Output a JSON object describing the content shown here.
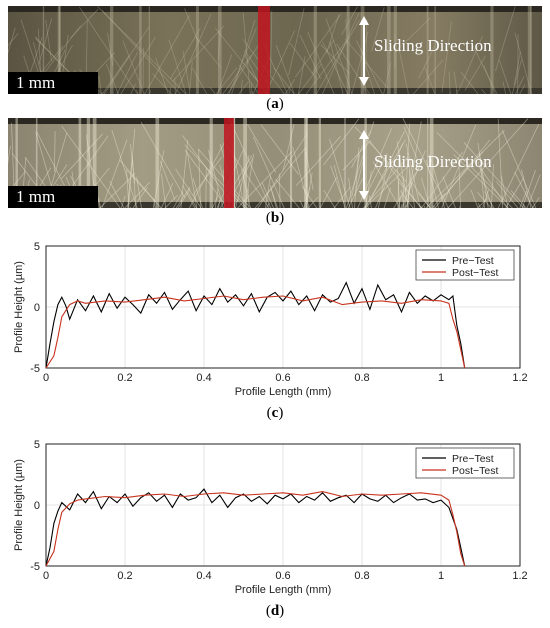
{
  "panel_a": {
    "scale_label": "1 mm",
    "direction_label": "Sliding Direction",
    "caption_open": "(",
    "caption_letter": "a",
    "caption_close": ")"
  },
  "panel_b": {
    "scale_label": "1 mm",
    "direction_label": "Sliding Direction",
    "caption_open": "(",
    "caption_letter": "b",
    "caption_close": ")"
  },
  "panel_c": {
    "caption_open": "(",
    "caption_letter": "c",
    "caption_close": ")"
  },
  "panel_d": {
    "caption_open": "(",
    "caption_letter": "d",
    "caption_close": ")"
  },
  "colors": {
    "pre_test": "#000000",
    "post_test": "#c8321e",
    "marker_line": "#c0141e"
  },
  "chart_data": [
    {
      "type": "line",
      "xlabel": "Profile Length (mm)",
      "ylabel": "Profile Height (µm)",
      "xlim": [
        0,
        1.2
      ],
      "ylim": [
        -5,
        5
      ],
      "x_ticks": [
        0,
        0.2,
        0.4,
        0.6,
        0.8,
        1,
        1.2
      ],
      "x_tick_labels": [
        "0",
        "0.2",
        "0.4",
        "0.6",
        "0.8",
        "1",
        "1.2"
      ],
      "y_ticks": [
        -5,
        0,
        5
      ],
      "y_tick_labels": [
        "-5",
        "0",
        "5"
      ],
      "grid": true,
      "legend_position": "top-right",
      "series": [
        {
          "name": "Pre−Test",
          "x": [
            0,
            0.01,
            0.02,
            0.03,
            0.04,
            0.05,
            0.06,
            0.08,
            0.1,
            0.12,
            0.14,
            0.16,
            0.18,
            0.2,
            0.22,
            0.24,
            0.26,
            0.28,
            0.3,
            0.32,
            0.34,
            0.36,
            0.38,
            0.4,
            0.42,
            0.44,
            0.46,
            0.48,
            0.5,
            0.52,
            0.54,
            0.56,
            0.58,
            0.6,
            0.62,
            0.64,
            0.66,
            0.68,
            0.7,
            0.72,
            0.74,
            0.76,
            0.78,
            0.8,
            0.82,
            0.84,
            0.86,
            0.88,
            0.9,
            0.92,
            0.94,
            0.96,
            0.98,
            1.0,
            1.02,
            1.03,
            1.04,
            1.05,
            1.06
          ],
          "y": [
            -5,
            -3,
            -1.2,
            0.2,
            0.8,
            0.1,
            -1.0,
            0.6,
            -0.3,
            0.9,
            -0.4,
            1.1,
            -0.1,
            0.8,
            0.2,
            -0.5,
            1.0,
            0.3,
            1.2,
            -0.2,
            0.6,
            1.3,
            -0.3,
            0.9,
            0.2,
            1.5,
            0.4,
            1.0,
            0.1,
            1.1,
            -0.4,
            0.8,
            1.2,
            0.5,
            1.3,
            0.2,
            0.9,
            -0.3,
            1.0,
            0.4,
            0.7,
            2.0,
            0.3,
            1.5,
            -0.2,
            1.8,
            0.6,
            1.0,
            -0.4,
            1.2,
            0.3,
            0.9,
            0.5,
            1.0,
            0.6,
            0.9,
            -1.5,
            -3.0,
            -5
          ]
        },
        {
          "name": "Post−Test",
          "x": [
            0,
            0.02,
            0.03,
            0.04,
            0.06,
            0.08,
            0.1,
            0.15,
            0.2,
            0.25,
            0.3,
            0.35,
            0.4,
            0.45,
            0.5,
            0.55,
            0.6,
            0.65,
            0.7,
            0.75,
            0.8,
            0.85,
            0.9,
            0.95,
            1.0,
            1.02,
            1.03,
            1.04,
            1.05,
            1.06
          ],
          "y": [
            -5,
            -4.0,
            -2.5,
            -0.8,
            0.2,
            0.5,
            0.3,
            0.5,
            0.4,
            0.6,
            0.8,
            0.5,
            0.7,
            0.9,
            0.6,
            0.8,
            0.9,
            0.5,
            0.8,
            0.2,
            0.4,
            0.5,
            0.3,
            0.6,
            0.5,
            0.3,
            -1.0,
            -2.0,
            -3.5,
            -5
          ]
        }
      ]
    },
    {
      "type": "line",
      "xlabel": "Profile Length (mm)",
      "ylabel": "Profile Height (µm)",
      "xlim": [
        0,
        1.2
      ],
      "ylim": [
        -5,
        5
      ],
      "x_ticks": [
        0,
        0.2,
        0.4,
        0.6,
        0.8,
        1,
        1.2
      ],
      "x_tick_labels": [
        "0",
        "0.2",
        "0.4",
        "0.6",
        "0.8",
        "1",
        "1.2"
      ],
      "y_ticks": [
        -5,
        0,
        5
      ],
      "y_tick_labels": [
        "-5",
        "0",
        "5"
      ],
      "grid": true,
      "legend_position": "top-right",
      "series": [
        {
          "name": "Pre−Test",
          "x": [
            0,
            0.01,
            0.02,
            0.03,
            0.04,
            0.06,
            0.08,
            0.1,
            0.12,
            0.14,
            0.16,
            0.18,
            0.2,
            0.22,
            0.24,
            0.26,
            0.28,
            0.3,
            0.32,
            0.34,
            0.36,
            0.38,
            0.4,
            0.42,
            0.44,
            0.46,
            0.48,
            0.5,
            0.52,
            0.54,
            0.56,
            0.58,
            0.6,
            0.62,
            0.64,
            0.66,
            0.68,
            0.7,
            0.72,
            0.74,
            0.76,
            0.78,
            0.8,
            0.82,
            0.84,
            0.86,
            0.88,
            0.9,
            0.92,
            0.94,
            0.96,
            0.98,
            1.0,
            1.02,
            1.04,
            1.05,
            1.06
          ],
          "y": [
            -5,
            -3.5,
            -1.5,
            -0.5,
            0.2,
            -0.4,
            0.9,
            0.2,
            1.1,
            -0.3,
            0.7,
            0.2,
            0.9,
            -0.1,
            0.6,
            1.0,
            0.3,
            0.8,
            -0.2,
            0.9,
            0.4,
            0.6,
            1.3,
            0.2,
            0.8,
            -0.2,
            0.6,
            0.9,
            0.3,
            0.7,
            0.1,
            0.8,
            0.5,
            0.9,
            0.2,
            0.7,
            0.4,
            1.0,
            0.3,
            0.6,
            0.8,
            0.2,
            0.9,
            0.5,
            0.3,
            0.8,
            0.2,
            0.6,
            0.9,
            0.4,
            0.5,
            0.2,
            0.4,
            -0.2,
            -2.0,
            -3.5,
            -5
          ]
        },
        {
          "name": "Post−Test",
          "x": [
            0,
            0.02,
            0.03,
            0.04,
            0.06,
            0.08,
            0.1,
            0.15,
            0.2,
            0.25,
            0.3,
            0.35,
            0.4,
            0.45,
            0.5,
            0.55,
            0.6,
            0.65,
            0.7,
            0.75,
            0.8,
            0.85,
            0.9,
            0.95,
            1.0,
            1.02,
            1.03,
            1.04,
            1.05,
            1.06
          ],
          "y": [
            -5,
            -3.8,
            -2.0,
            -0.6,
            0.1,
            0.4,
            0.5,
            0.7,
            0.6,
            0.8,
            0.9,
            0.7,
            0.9,
            1.0,
            0.8,
            0.9,
            1.0,
            0.8,
            1.1,
            0.7,
            0.9,
            0.8,
            0.9,
            1.0,
            0.8,
            0.4,
            -0.8,
            -2.2,
            -4.0,
            -5
          ]
        }
      ]
    }
  ]
}
